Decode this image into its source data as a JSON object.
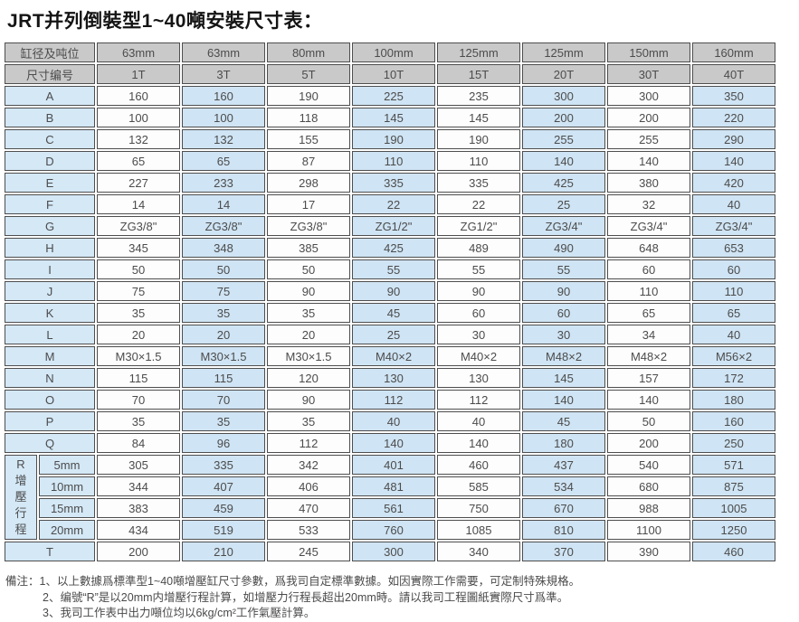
{
  "title": "JRT并列倒裝型1~40噸安裝尺寸表：",
  "table": {
    "header_row1_label": "缸径及吨位",
    "header_row2_label": "尺寸编号",
    "columns": [
      {
        "bore": "63mm",
        "ton": "1T"
      },
      {
        "bore": "63mm",
        "ton": "3T"
      },
      {
        "bore": "80mm",
        "ton": "5T"
      },
      {
        "bore": "100mm",
        "ton": "10T"
      },
      {
        "bore": "125mm",
        "ton": "15T"
      },
      {
        "bore": "125mm",
        "ton": "20T"
      },
      {
        "bore": "150mm",
        "ton": "30T"
      },
      {
        "bore": "160mm",
        "ton": "40T"
      }
    ],
    "rows": [
      {
        "label": "A",
        "values": [
          "160",
          "160",
          "190",
          "225",
          "235",
          "300",
          "300",
          "350"
        ]
      },
      {
        "label": "B",
        "values": [
          "100",
          "100",
          "118",
          "145",
          "145",
          "200",
          "200",
          "220"
        ]
      },
      {
        "label": "C",
        "values": [
          "132",
          "132",
          "155",
          "190",
          "190",
          "255",
          "255",
          "290"
        ]
      },
      {
        "label": "D",
        "values": [
          "65",
          "65",
          "87",
          "110",
          "110",
          "140",
          "140",
          "140"
        ]
      },
      {
        "label": "E",
        "values": [
          "227",
          "233",
          "298",
          "335",
          "335",
          "425",
          "380",
          "420"
        ]
      },
      {
        "label": "F",
        "values": [
          "14",
          "14",
          "17",
          "22",
          "22",
          "25",
          "32",
          "40"
        ]
      },
      {
        "label": "G",
        "values": [
          "ZG3/8\"",
          "ZG3/8\"",
          "ZG3/8\"",
          "ZG1/2\"",
          "ZG1/2\"",
          "ZG3/4\"",
          "ZG3/4\"",
          "ZG3/4\""
        ]
      },
      {
        "label": "H",
        "values": [
          "345",
          "348",
          "385",
          "425",
          "489",
          "490",
          "648",
          "653"
        ]
      },
      {
        "label": "I",
        "values": [
          "50",
          "50",
          "50",
          "55",
          "55",
          "55",
          "60",
          "60"
        ]
      },
      {
        "label": "J",
        "values": [
          "75",
          "75",
          "90",
          "90",
          "90",
          "90",
          "110",
          "110"
        ]
      },
      {
        "label": "K",
        "values": [
          "35",
          "35",
          "35",
          "45",
          "60",
          "60",
          "65",
          "65"
        ]
      },
      {
        "label": "L",
        "values": [
          "20",
          "20",
          "20",
          "25",
          "30",
          "30",
          "34",
          "40"
        ]
      },
      {
        "label": "M",
        "values": [
          "M30×1.5",
          "M30×1.5",
          "M30×1.5",
          "M40×2",
          "M40×2",
          "M48×2",
          "M48×2",
          "M56×2"
        ]
      },
      {
        "label": "N",
        "values": [
          "115",
          "115",
          "120",
          "130",
          "130",
          "145",
          "157",
          "172"
        ]
      },
      {
        "label": "O",
        "values": [
          "70",
          "70",
          "90",
          "112",
          "112",
          "140",
          "140",
          "180"
        ]
      },
      {
        "label": "P",
        "values": [
          "35",
          "35",
          "35",
          "40",
          "40",
          "45",
          "50",
          "160"
        ]
      },
      {
        "label": "Q",
        "values": [
          "84",
          "96",
          "112",
          "140",
          "140",
          "180",
          "200",
          "250"
        ]
      }
    ],
    "r_group": {
      "label_chars": [
        "R",
        "增",
        "壓",
        "行",
        "程"
      ],
      "rows": [
        {
          "label": "5mm",
          "values": [
            "305",
            "335",
            "342",
            "401",
            "460",
            "437",
            "540",
            "571"
          ]
        },
        {
          "label": "10mm",
          "values": [
            "344",
            "407",
            "406",
            "481",
            "585",
            "534",
            "680",
            "875"
          ]
        },
        {
          "label": "15mm",
          "values": [
            "383",
            "459",
            "470",
            "561",
            "750",
            "670",
            "988",
            "1005"
          ]
        },
        {
          "label": "20mm",
          "values": [
            "434",
            "519",
            "533",
            "760",
            "1085",
            "810",
            "1100",
            "1250"
          ]
        }
      ]
    },
    "t_row": {
      "label": "T",
      "values": [
        "200",
        "210",
        "245",
        "300",
        "340",
        "370",
        "390",
        "460"
      ]
    }
  },
  "notes": {
    "prefix": "備注：",
    "lines": [
      "1、以上數據爲標準型1~40噸增壓缸尺寸參數，爲我司自定標準數據。如因實際工作需要，可定制特殊規格。",
      "2、编號“R”是以20mm内增壓行程計算，如增壓力行程長超出20mm時。請以我司工程圖紙實際尺寸爲準。",
      "3、我司工作表中出力噸位均以6kg/cm²工作氣壓計算。"
    ]
  },
  "colors": {
    "header_bg": "#c9c9c9",
    "label_bg": "#d4e8f6",
    "cell_blue": "#cfe4f4",
    "cell_white": "#fdfdfd",
    "border": "#4e4e4e"
  }
}
